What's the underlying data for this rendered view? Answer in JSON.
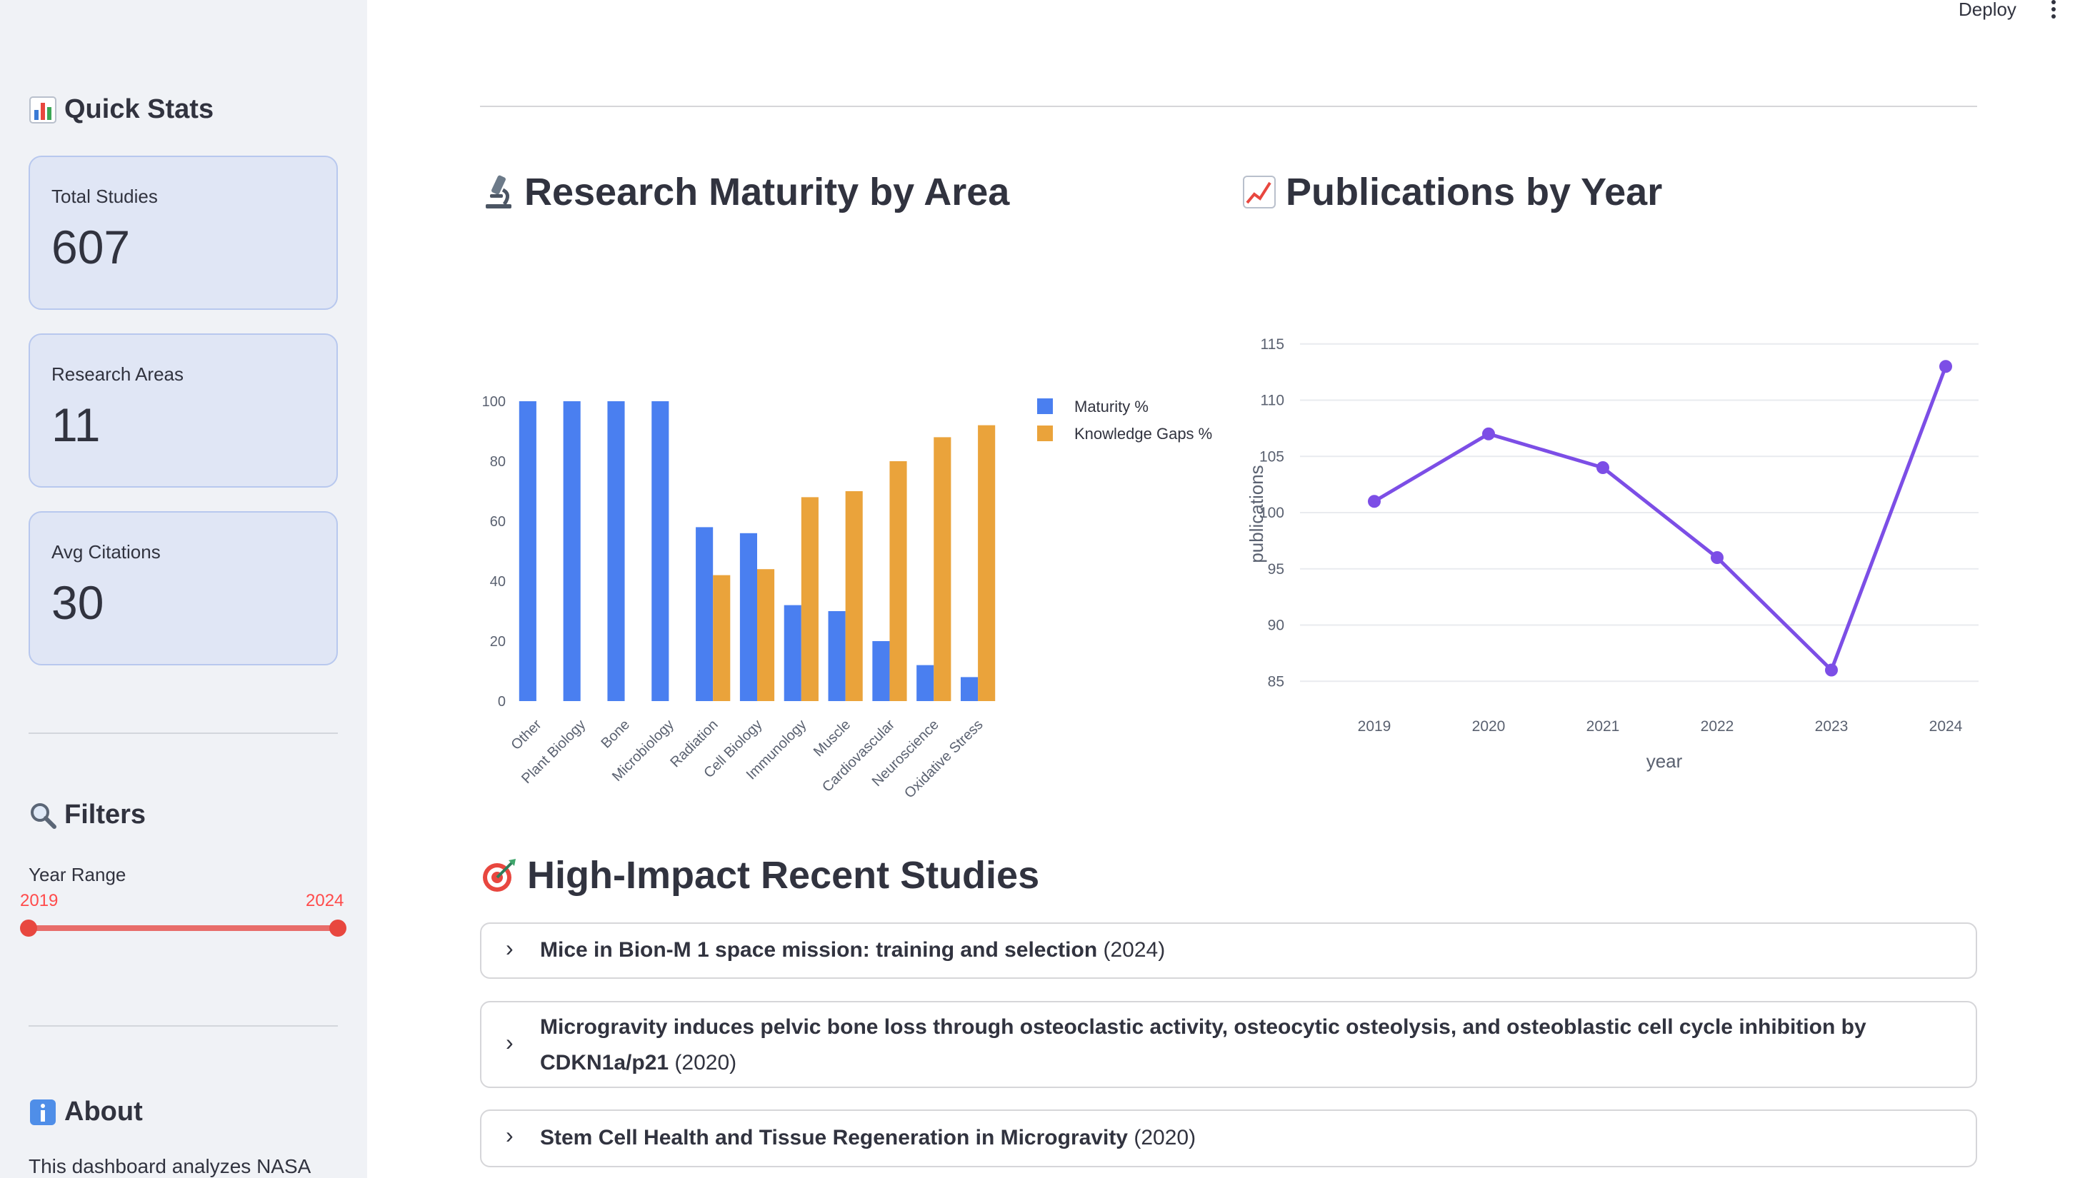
{
  "topbar": {
    "deploy_label": "Deploy"
  },
  "sidebar": {
    "quick_stats_title": "Quick Stats",
    "metrics": [
      {
        "label": "Total Studies",
        "value": "607"
      },
      {
        "label": "Research Areas",
        "value": "11"
      },
      {
        "label": "Avg Citations",
        "value": "30"
      }
    ],
    "filters_title": "Filters",
    "year_range": {
      "label": "Year Range",
      "min": "2019",
      "max": "2024"
    },
    "about_title": "About",
    "about_text": "This dashboard analyzes NASA"
  },
  "main": {
    "maturity_title": "Research Maturity by Area",
    "publications_title": "Publications by Year",
    "studies_title": "High-Impact Recent Studies",
    "studies": [
      {
        "title": "Mice in Bion-M 1 space mission: training and selection",
        "year": "(2024)"
      },
      {
        "title": "Microgravity induces pelvic bone loss through osteoclastic activity, osteocytic osteolysis, and osteoblastic cell cycle inhibition by CDKN1a/p21",
        "year": "(2020)"
      },
      {
        "title": "Stem Cell Health and Tissue Regeneration in Microgravity",
        "year": "(2020)"
      }
    ]
  },
  "colors": {
    "maturity": "#4a7ff0",
    "gaps": "#eaa33b",
    "line": "#7c4ee6",
    "accent": "#ff4b4b"
  },
  "icons": {
    "quick_stats": "bar-chart-icon",
    "filters": "magnifier-icon",
    "about": "info-icon",
    "maturity": "microscope-icon",
    "publications": "trend-chart-icon",
    "studies": "target-icon"
  },
  "chart_data": [
    {
      "type": "bar",
      "categories": [
        "Other",
        "Plant Biology",
        "Bone",
        "Microbiology",
        "Radiation",
        "Cell Biology",
        "Immunology",
        "Muscle",
        "Cardiovascular",
        "Neuroscience",
        "Oxidative Stress"
      ],
      "series": [
        {
          "name": "Maturity %",
          "values": [
            100,
            100,
            100,
            100,
            58,
            56,
            32,
            30,
            20,
            12,
            8
          ]
        },
        {
          "name": "Knowledge Gaps %",
          "values": [
            0,
            0,
            0,
            0,
            42,
            44,
            68,
            70,
            80,
            88,
            92
          ]
        }
      ],
      "ylim": [
        0,
        100
      ],
      "yticks": [
        "0",
        "20",
        "40",
        "60",
        "80",
        "100"
      ],
      "legend": "top-right",
      "grid": false
    },
    {
      "type": "line",
      "x": [
        "2019",
        "2020",
        "2021",
        "2022",
        "2023",
        "2024"
      ],
      "values": [
        101,
        107,
        104,
        96,
        86,
        113
      ],
      "xlabel": "year",
      "ylabel": "publications",
      "ylim": [
        84,
        116
      ],
      "yticks": [
        "85",
        "90",
        "95",
        "100",
        "105",
        "110",
        "115"
      ],
      "grid": true
    }
  ]
}
